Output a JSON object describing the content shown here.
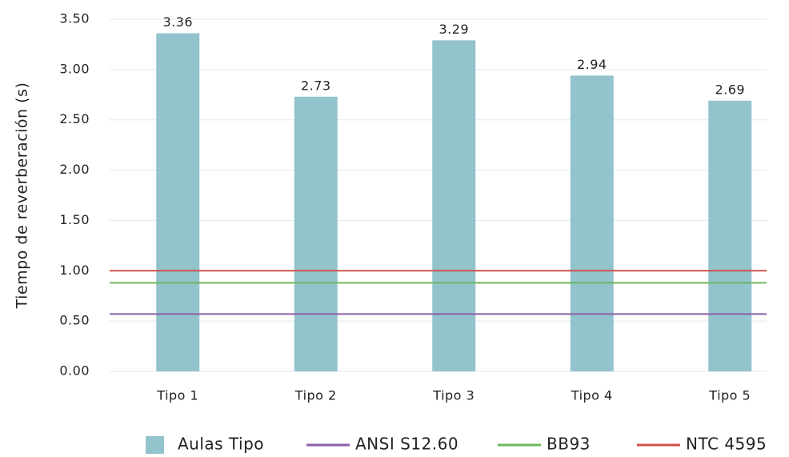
{
  "chart_data": {
    "type": "bar",
    "y_label": "Tiempo de reverberación (s)",
    "categories": [
      "Tipo 1",
      "Tipo 2",
      "Tipo 3",
      "Tipo 4",
      "Tipo 5"
    ],
    "series": [
      {
        "name": "Aulas Tipo",
        "color": "#93c3cd",
        "values": [
          3.36,
          2.73,
          3.29,
          2.94,
          2.69
        ]
      }
    ],
    "reference_lines": [
      {
        "name": "ANSI S12.60",
        "color": "#8e5fa8",
        "value": 0.57
      },
      {
        "name": "BB93",
        "color": "#6cb85c",
        "value": 0.88
      },
      {
        "name": "NTC 4595",
        "color": "#d0524b",
        "value": 1.0
      }
    ],
    "ylim": [
      0,
      3.5
    ],
    "yticks": [
      {
        "value": 0,
        "label": "0.00"
      },
      {
        "value": 0.5,
        "label": "0.50"
      },
      {
        "value": 1,
        "label": "1.00"
      },
      {
        "value": 1.5,
        "label": "1.50"
      },
      {
        "value": 2,
        "label": "2.00"
      },
      {
        "value": 2.5,
        "label": "2.50"
      },
      {
        "value": 3,
        "label": "3.00"
      },
      {
        "value": 3.5,
        "label": "3.50"
      }
    ],
    "grid": true,
    "legend": "bottom"
  }
}
